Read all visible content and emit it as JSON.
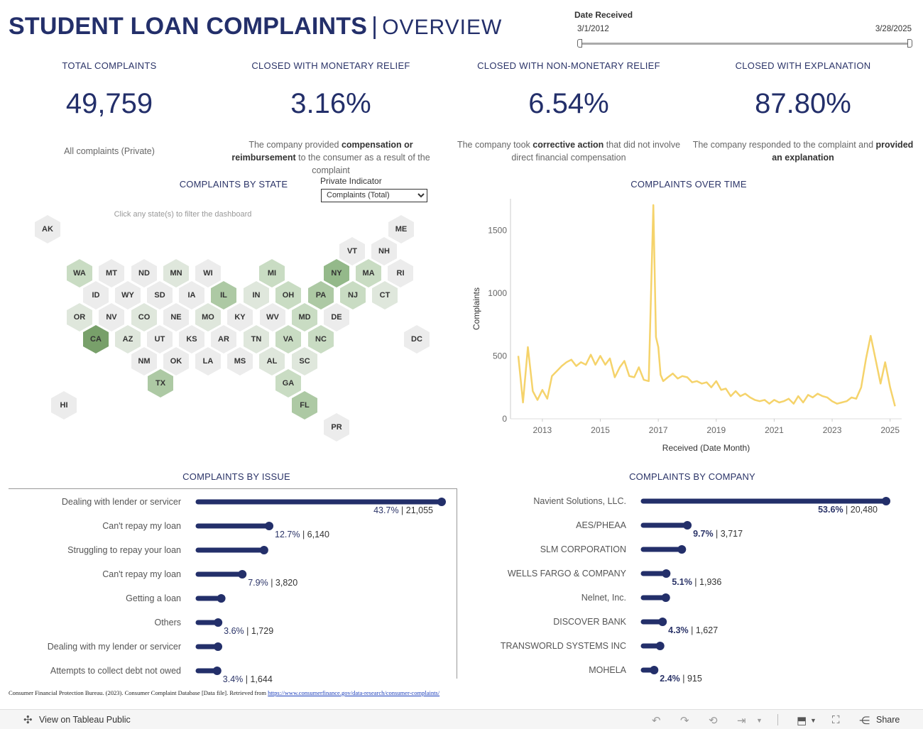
{
  "header": {
    "title": "STUDENT LOAN COMPLAINTS",
    "separator": "|",
    "subtitle": "OVERVIEW"
  },
  "date_filter": {
    "label": "Date Received",
    "start": "3/1/2012",
    "end": "3/28/2025"
  },
  "kpis": [
    {
      "label": "TOTAL COMPLAINTS",
      "value": "49,759",
      "desc_pre": "All complaints (Private)",
      "desc_bold": "",
      "desc_post": ""
    },
    {
      "label": "CLOSED WITH MONETARY RELIEF",
      "value": "3.16%",
      "desc_pre": "The company provided ",
      "desc_bold": "compensation or reimbursement",
      "desc_post": " to the consumer as a result of the complaint"
    },
    {
      "label": "CLOSED WITH NON-MONETARY RELIEF",
      "value": "6.54%",
      "desc_pre": "The company took ",
      "desc_bold": "corrective action",
      "desc_post": " that did not involve direct financial compensation"
    },
    {
      "label": "CLOSED WITH EXPLANATION",
      "value": "87.80%",
      "desc_pre": "The company responded to the complaint and ",
      "desc_bold": "provided an explanation",
      "desc_post": ""
    }
  ],
  "state_map": {
    "title": "COMPLAINTS BY STATE",
    "hint": "Click any state(s) to filter the dashboard",
    "indicator_label": "Private Indicator",
    "indicator_value": "Complaints (Total)",
    "states": [
      {
        "code": "AK",
        "level": 0
      },
      {
        "code": "ME",
        "level": 0
      },
      {
        "code": "VT",
        "level": 0
      },
      {
        "code": "NH",
        "level": 0
      },
      {
        "code": "WA",
        "level": 2
      },
      {
        "code": "MT",
        "level": 0
      },
      {
        "code": "ND",
        "level": 0
      },
      {
        "code": "MN",
        "level": 1
      },
      {
        "code": "WI",
        "level": 0
      },
      {
        "code": "MI",
        "level": 2
      },
      {
        "code": "NY",
        "level": 4
      },
      {
        "code": "MA",
        "level": 2
      },
      {
        "code": "RI",
        "level": 0
      },
      {
        "code": "ID",
        "level": 0
      },
      {
        "code": "WY",
        "level": 0
      },
      {
        "code": "SD",
        "level": 0
      },
      {
        "code": "IA",
        "level": 0
      },
      {
        "code": "IL",
        "level": 3
      },
      {
        "code": "IN",
        "level": 1
      },
      {
        "code": "OH",
        "level": 2
      },
      {
        "code": "PA",
        "level": 3
      },
      {
        "code": "NJ",
        "level": 2
      },
      {
        "code": "CT",
        "level": 1
      },
      {
        "code": "OR",
        "level": 1
      },
      {
        "code": "NV",
        "level": 0
      },
      {
        "code": "CO",
        "level": 1
      },
      {
        "code": "NE",
        "level": 0
      },
      {
        "code": "MO",
        "level": 1
      },
      {
        "code": "KY",
        "level": 0
      },
      {
        "code": "WV",
        "level": 0
      },
      {
        "code": "MD",
        "level": 2
      },
      {
        "code": "DE",
        "level": 0
      },
      {
        "code": "CA",
        "level": 5
      },
      {
        "code": "AZ",
        "level": 1
      },
      {
        "code": "UT",
        "level": 0
      },
      {
        "code": "KS",
        "level": 0
      },
      {
        "code": "AR",
        "level": 0
      },
      {
        "code": "TN",
        "level": 1
      },
      {
        "code": "VA",
        "level": 2
      },
      {
        "code": "NC",
        "level": 2
      },
      {
        "code": "DC",
        "level": 0
      },
      {
        "code": "NM",
        "level": 0
      },
      {
        "code": "OK",
        "level": 0
      },
      {
        "code": "LA",
        "level": 0
      },
      {
        "code": "MS",
        "level": 0
      },
      {
        "code": "AL",
        "level": 1
      },
      {
        "code": "SC",
        "level": 1
      },
      {
        "code": "TX",
        "level": 3
      },
      {
        "code": "GA",
        "level": 2
      },
      {
        "code": "HI",
        "level": 0
      },
      {
        "code": "FL",
        "level": 3
      },
      {
        "code": "PR",
        "level": 0
      }
    ],
    "palette": [
      "#ececec",
      "#dfe7dc",
      "#c9dcc3",
      "#adc9a4",
      "#94b98a",
      "#78a06a"
    ]
  },
  "time_chart": {
    "title": "COMPLAINTS OVER TIME",
    "chart_data": {
      "type": "line",
      "title": "COMPLAINTS OVER TIME",
      "xlabel": "Received (Date Month)",
      "ylabel": "Complaints",
      "xlim": [
        2011.9,
        2025.4
      ],
      "ylim": [
        0,
        1750
      ],
      "x_ticks": [
        2013,
        2015,
        2017,
        2019,
        2021,
        2023,
        2025
      ],
      "y_ticks": [
        0,
        500,
        1000,
        1500
      ],
      "color": "#f5d36b",
      "x": [
        2012.17,
        2012.33,
        2012.5,
        2012.67,
        2012.83,
        2013.0,
        2013.17,
        2013.33,
        2013.5,
        2013.67,
        2013.83,
        2014.0,
        2014.17,
        2014.33,
        2014.5,
        2014.67,
        2014.83,
        2015.0,
        2015.17,
        2015.33,
        2015.5,
        2015.67,
        2015.83,
        2016.0,
        2016.17,
        2016.33,
        2016.5,
        2016.67,
        2016.83,
        2016.92,
        2017.0,
        2017.08,
        2017.17,
        2017.33,
        2017.5,
        2017.67,
        2017.83,
        2018.0,
        2018.17,
        2018.33,
        2018.5,
        2018.67,
        2018.83,
        2019.0,
        2019.17,
        2019.33,
        2019.5,
        2019.67,
        2019.83,
        2020.0,
        2020.17,
        2020.33,
        2020.5,
        2020.67,
        2020.83,
        2021.0,
        2021.17,
        2021.33,
        2021.5,
        2021.67,
        2021.83,
        2022.0,
        2022.17,
        2022.33,
        2022.5,
        2022.67,
        2022.83,
        2023.0,
        2023.17,
        2023.33,
        2023.5,
        2023.67,
        2023.83,
        2024.0,
        2024.17,
        2024.33,
        2024.5,
        2024.67,
        2024.83,
        2025.0,
        2025.17
      ],
      "y": [
        500,
        130,
        570,
        220,
        150,
        230,
        160,
        340,
        380,
        420,
        450,
        470,
        420,
        450,
        430,
        510,
        430,
        500,
        430,
        480,
        330,
        410,
        460,
        340,
        330,
        410,
        310,
        300,
        1700,
        650,
        570,
        350,
        300,
        330,
        360,
        320,
        340,
        330,
        290,
        300,
        280,
        290,
        250,
        300,
        230,
        240,
        180,
        220,
        180,
        200,
        170,
        150,
        140,
        150,
        120,
        150,
        130,
        140,
        160,
        120,
        180,
        130,
        190,
        170,
        200,
        180,
        170,
        140,
        120,
        130,
        140,
        170,
        160,
        250,
        480,
        660,
        470,
        280,
        450,
        250,
        100
      ]
    }
  },
  "issue_chart": {
    "title": "COMPLAINTS BY ISSUE",
    "chart_data": {
      "type": "bar",
      "title": "COMPLAINTS BY ISSUE",
      "categories": [
        "Dealing with lender or servicer",
        "Can't repay my loan",
        "Struggling to repay your loan",
        "Can't repay my loan",
        "Getting a loan",
        "Others",
        "Dealing with my lender or servicer",
        "Attempts to collect debt not owed"
      ],
      "values": [
        21055,
        6140,
        5700,
        3820,
        2000,
        1729,
        1720,
        1644
      ],
      "labels": [
        {
          "pct": "43.7%",
          "count": "21,055"
        },
        {
          "pct": "12.7%",
          "count": "6,140"
        },
        null,
        {
          "pct": "7.9%",
          "count": "3,820"
        },
        null,
        {
          "pct": "3.6%",
          "count": "1,729"
        },
        null,
        {
          "pct": "3.4%",
          "count": "1,644"
        }
      ],
      "xlim": [
        0,
        21055
      ]
    }
  },
  "company_chart": {
    "title": "COMPLAINTS BY COMPANY",
    "chart_data": {
      "type": "bar",
      "title": "COMPLAINTS BY COMPANY",
      "categories": [
        "Navient Solutions, LLC.",
        "AES/PHEAA",
        "SLM CORPORATION",
        "WELLS FARGO & COMPANY",
        "Nelnet, Inc.",
        "DISCOVER BANK",
        "TRANSWORLD SYSTEMS INC",
        "MOHELA"
      ],
      "values": [
        20480,
        3717,
        3250,
        1936,
        1900,
        1627,
        1420,
        915
      ],
      "labels": [
        {
          "pct": "53.6%",
          "count": "20,480"
        },
        {
          "pct": "9.7%",
          "count": "3,717"
        },
        null,
        {
          "pct": "5.1%",
          "count": "1,936"
        },
        null,
        {
          "pct": "4.3%",
          "count": "1,627"
        },
        null,
        {
          "pct": "2.4%",
          "count": "915"
        }
      ],
      "xlim": [
        0,
        20480
      ]
    }
  },
  "source": {
    "text": "Consumer Financial Protection Bureau. (2023). Consumer Complaint Database [Data file]. Retrieved from ",
    "link": "https://www.consumerfinance.gov/data-research/consumer-complaints/"
  },
  "footer": {
    "view_label": "View on Tableau Public",
    "share_label": "Share"
  }
}
